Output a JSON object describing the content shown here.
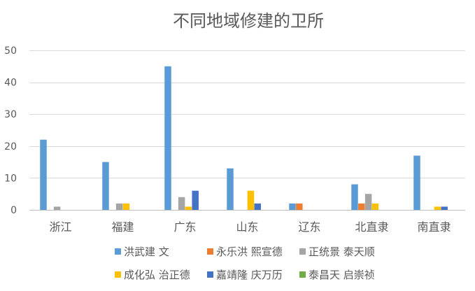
{
  "chart_data": {
    "type": "bar",
    "title": "不同地域修建的卫所",
    "xlabel": "",
    "ylabel": "",
    "categories": [
      "浙江",
      "福建",
      "广东",
      "山东",
      "辽东",
      "北直隶",
      "南直隶"
    ],
    "ylim": [
      0,
      50
    ],
    "yticks": [
      0,
      10,
      20,
      30,
      40,
      50
    ],
    "grid": true,
    "legend_position": "bottom",
    "series": [
      {
        "name": "洪武建 文",
        "color": "#5B9BD5",
        "values": [
          22,
          15,
          45,
          13,
          2,
          8,
          17
        ]
      },
      {
        "name": "永乐洪 熙宣德",
        "color": "#ED7D31",
        "values": [
          0,
          0,
          0,
          0,
          2,
          2,
          0
        ]
      },
      {
        "name": "正统景 泰天顺",
        "color": "#A5A5A5",
        "values": [
          1,
          2,
          4,
          0,
          0,
          5,
          0
        ]
      },
      {
        "name": "成化弘 治正德",
        "color": "#FFC000",
        "values": [
          0,
          2,
          1,
          6,
          0,
          2,
          1
        ]
      },
      {
        "name": "嘉靖隆 庆万历",
        "color": "#4472C4",
        "values": [
          0,
          0,
          6,
          2,
          0,
          0,
          1
        ]
      },
      {
        "name": "泰昌天 启崇祯",
        "color": "#70AD47",
        "values": [
          0,
          0,
          0,
          0,
          0,
          0,
          0
        ]
      }
    ]
  }
}
